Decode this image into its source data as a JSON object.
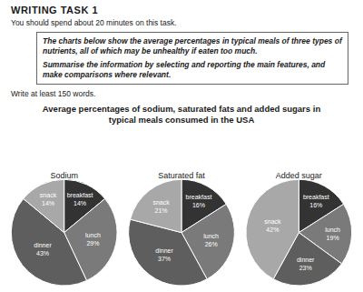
{
  "document": {
    "heading": "WRITING TASK 1",
    "instruction": "You should spend about 20 minutes on this task.",
    "prompt": [
      "The charts below show the average percentages in typical meals of three types of nutrients, all of which may be unhealthy if eaten too much.",
      "Summarise the information by selecting and reporting the main features, and make comparisons where relevant."
    ],
    "note": "Write at least 150 words.",
    "figure_title": "Average percentages of sodium, saturated fats and added sugars in typical meals consumed in the USA"
  },
  "chart_data": [
    {
      "type": "pie",
      "title": "Sodium",
      "categories": [
        "breakfast",
        "lunch",
        "dinner",
        "snack"
      ],
      "values": [
        14,
        29,
        43,
        14
      ],
      "value_labels": [
        "14%",
        "29%",
        "43%",
        "14%"
      ],
      "colors": [
        "#333333",
        "#7a7a7a",
        "#5e5e5e",
        "#a8a8a8"
      ],
      "data_labels": true
    },
    {
      "type": "pie",
      "title": "Saturated fat",
      "categories": [
        "breakfast",
        "lunch",
        "dinner",
        "snack"
      ],
      "values": [
        16,
        26,
        37,
        21
      ],
      "value_labels": [
        "16%",
        "26%",
        "37%",
        "21%"
      ],
      "colors": [
        "#333333",
        "#7a7a7a",
        "#5e5e5e",
        "#a8a8a8"
      ],
      "data_labels": true
    },
    {
      "type": "pie",
      "title": "Added sugar",
      "categories": [
        "breakfast",
        "lunch",
        "dinner",
        "snack"
      ],
      "values": [
        16,
        19,
        23,
        42
      ],
      "value_labels": [
        "16%",
        "19%",
        "23%",
        "42%"
      ],
      "colors": [
        "#333333",
        "#7a7a7a",
        "#5e5e5e",
        "#a8a8a8"
      ],
      "data_labels": true
    }
  ]
}
